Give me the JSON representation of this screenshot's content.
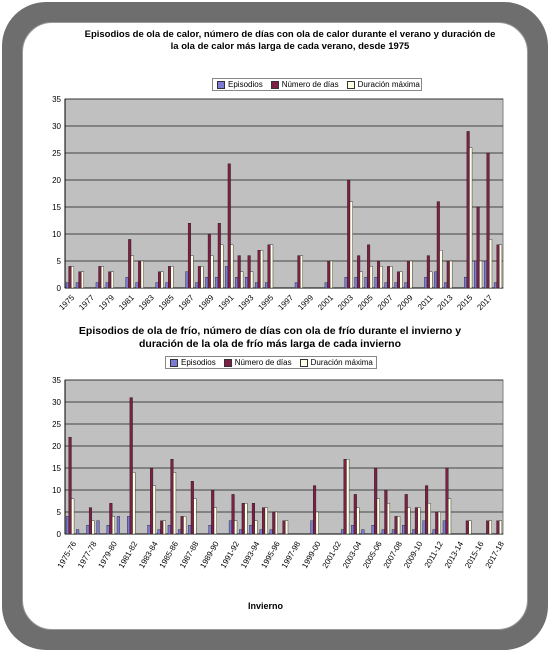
{
  "colors": {
    "episodes": "#7b7bd6",
    "days": "#7f1f45",
    "duration": "#ffffe5",
    "plot_bg": "#c0c0c0"
  },
  "chart_data": [
    {
      "type": "bar",
      "title": "Episodios de ola de calor, número de días con ola de calor durante el verano y duración de la ola de calor más larga de cada verano, desde 1975",
      "legend": [
        "Episodios",
        "Número de días",
        "Duración máxima"
      ],
      "legend_position": "top",
      "grid": true,
      "ylim": [
        0,
        35
      ],
      "yticks": [
        0,
        5,
        10,
        15,
        20,
        25,
        30,
        35
      ],
      "categories": [
        "1975",
        "1976",
        "1977",
        "1978",
        "1979",
        "1980",
        "1981",
        "1982",
        "1983",
        "1984",
        "1985",
        "1986",
        "1987",
        "1988",
        "1989",
        "1990",
        "1991",
        "1992",
        "1993",
        "1994",
        "1995",
        "1996",
        "1997",
        "1998",
        "1999",
        "2000",
        "2001",
        "2002",
        "2003",
        "2004",
        "2005",
        "2006",
        "2007",
        "2008",
        "2009",
        "2010",
        "2011",
        "2012",
        "2013",
        "2014",
        "2015",
        "2016",
        "2017",
        "2018"
      ],
      "tick_labels": [
        "1975",
        "1977",
        "1979",
        "1981",
        "1983",
        "1985",
        "1987",
        "1989",
        "1991",
        "1993",
        "1995",
        "1997",
        "1999",
        "2001",
        "2003",
        "2005",
        "2007",
        "2009",
        "2011",
        "2013",
        "2015",
        "2017"
      ],
      "series": [
        {
          "name": "Episodios",
          "values": [
            1,
            1,
            0,
            1,
            1,
            0,
            2,
            1,
            0,
            1,
            1,
            0,
            3,
            1,
            2,
            2,
            4,
            2,
            2,
            1,
            1,
            0,
            0,
            1,
            0,
            0,
            1,
            0,
            2,
            2,
            2,
            2,
            1,
            1,
            1,
            0,
            2,
            3,
            1,
            0,
            2,
            5,
            5,
            1
          ]
        },
        {
          "name": "Número de días",
          "values": [
            4,
            3,
            0,
            4,
            3,
            0,
            9,
            5,
            0,
            3,
            4,
            0,
            12,
            4,
            10,
            12,
            23,
            6,
            6,
            7,
            8,
            0,
            0,
            6,
            0,
            0,
            5,
            0,
            20,
            6,
            8,
            5,
            4,
            3,
            5,
            0,
            6,
            16,
            5,
            0,
            29,
            15,
            25,
            8
          ]
        },
        {
          "name": "Duración máxima",
          "values": [
            4,
            3,
            0,
            4,
            3,
            0,
            6,
            5,
            0,
            3,
            4,
            0,
            6,
            4,
            6,
            8,
            8,
            3,
            3,
            7,
            8,
            0,
            0,
            6,
            0,
            0,
            5,
            0,
            16,
            3,
            4,
            4,
            4,
            3,
            5,
            0,
            3,
            7,
            5,
            0,
            26,
            5,
            9,
            8
          ]
        }
      ]
    },
    {
      "type": "bar",
      "title": "Episodios de ola de frío, número de días con ola de frío durante el invierno y duración de la ola de frío más larga de cada invierno",
      "xlabel": "Invierno",
      "legend": [
        "Episodios",
        "Número de días",
        "Duración máxima"
      ],
      "legend_position": "top",
      "grid": true,
      "ylim": [
        0,
        35
      ],
      "yticks": [
        0,
        5,
        10,
        15,
        20,
        25,
        30,
        35
      ],
      "categories": [
        "1975-76",
        "1976-77",
        "1977-78",
        "1978-79",
        "1979-80",
        "1980-81",
        "1981-82",
        "1982-83",
        "1983-84",
        "1984-85",
        "1985-86",
        "1986-87",
        "1987-88",
        "1988-89",
        "1989-90",
        "1990-91",
        "1991-92",
        "1992-93",
        "1993-94",
        "1994-95",
        "1995-96",
        "1996-97",
        "1997-98",
        "1998-99",
        "1999-00",
        "2000-01",
        "2001-02",
        "2002-03",
        "2003-04",
        "2004-05",
        "2005-06",
        "2006-07",
        "2007-08",
        "2008-09",
        "2009-10",
        "2010-11",
        "2011-12",
        "2012-13",
        "2013-14",
        "2014-15",
        "2015-16",
        "2016-17",
        "2017-18"
      ],
      "tick_labels": [
        "1975-76",
        "1977-78",
        "1979-80",
        "1981-82",
        "1983-84",
        "1985-86",
        "1987-88",
        "1989-90",
        "1991-92",
        "1993-94",
        "1995-96",
        "1997-98",
        "1999-00",
        "2001-02",
        "2003-04",
        "2005-06",
        "2007-08",
        "2009-10",
        "2011-12",
        "2013-14",
        "2015-16",
        "2017-18"
      ],
      "series": [
        {
          "name": "Episodios",
          "values": [
            4,
            1,
            2,
            3,
            2,
            4,
            4,
            0,
            2,
            1,
            2,
            1,
            2,
            0,
            2,
            0,
            3,
            1,
            2,
            1,
            1,
            0,
            0,
            0,
            3,
            0,
            0,
            1,
            2,
            1,
            2,
            1,
            1,
            2,
            1,
            3,
            1,
            3,
            0,
            0,
            0,
            0,
            0
          ]
        },
        {
          "name": "Número de días",
          "values": [
            22,
            0,
            6,
            0,
            7,
            0,
            31,
            0,
            15,
            3,
            17,
            4,
            12,
            0,
            10,
            0,
            9,
            7,
            7,
            6,
            5,
            3,
            0,
            0,
            11,
            0,
            0,
            17,
            9,
            0,
            15,
            10,
            4,
            9,
            6,
            11,
            5,
            15,
            0,
            3,
            0,
            3,
            3
          ]
        },
        {
          "name": "Duración máxima",
          "values": [
            8,
            0,
            3,
            0,
            4,
            0,
            14,
            0,
            11,
            3,
            14,
            4,
            8,
            0,
            6,
            0,
            3,
            7,
            3,
            6,
            5,
            3,
            0,
            0,
            5,
            0,
            0,
            17,
            6,
            0,
            8,
            7,
            4,
            6,
            6,
            7,
            5,
            8,
            0,
            3,
            0,
            3,
            3
          ]
        }
      ]
    }
  ]
}
